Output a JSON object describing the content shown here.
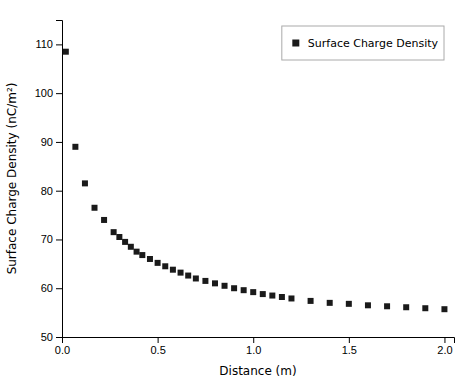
{
  "chart_data": {
    "type": "scatter",
    "xlabel": "Distance (m)",
    "ylabel": "Surface Charge Density (nC/m²)",
    "x": [
      0.02,
      0.07,
      0.12,
      0.17,
      0.22,
      0.27,
      0.3,
      0.33,
      0.36,
      0.39,
      0.42,
      0.46,
      0.5,
      0.54,
      0.58,
      0.62,
      0.66,
      0.7,
      0.75,
      0.8,
      0.85,
      0.9,
      0.95,
      1.0,
      1.05,
      1.1,
      1.15,
      1.2,
      1.3,
      1.4,
      1.5,
      1.6,
      1.7,
      1.8,
      1.9,
      2.0
    ],
    "series": [
      {
        "name": "Surface Charge Density",
        "color": "#1a1a1a",
        "marker": "square",
        "values": [
          108.5,
          89.0,
          81.5,
          76.5,
          74.0,
          71.5,
          70.5,
          69.5,
          68.5,
          67.5,
          66.8,
          66.0,
          65.2,
          64.5,
          63.8,
          63.2,
          62.6,
          62.0,
          61.5,
          61.0,
          60.5,
          60.0,
          59.6,
          59.2,
          58.8,
          58.5,
          58.2,
          57.9,
          57.4,
          57.0,
          56.8,
          56.5,
          56.3,
          56.1,
          55.9,
          55.7
        ]
      }
    ],
    "xlim": [
      0,
      2.05
    ],
    "ylim": [
      50,
      115
    ],
    "xticks": [
      {
        "value": 0,
        "label": "0.0"
      },
      {
        "value": 0.5,
        "label": "0.5"
      },
      {
        "value": 1,
        "label": "1.0"
      },
      {
        "value": 1.5,
        "label": "1.5"
      },
      {
        "value": 2,
        "label": "2.0"
      }
    ],
    "yticks": [
      50,
      60,
      70,
      80,
      90,
      100,
      110
    ],
    "grid": false,
    "legend": "upper right"
  }
}
